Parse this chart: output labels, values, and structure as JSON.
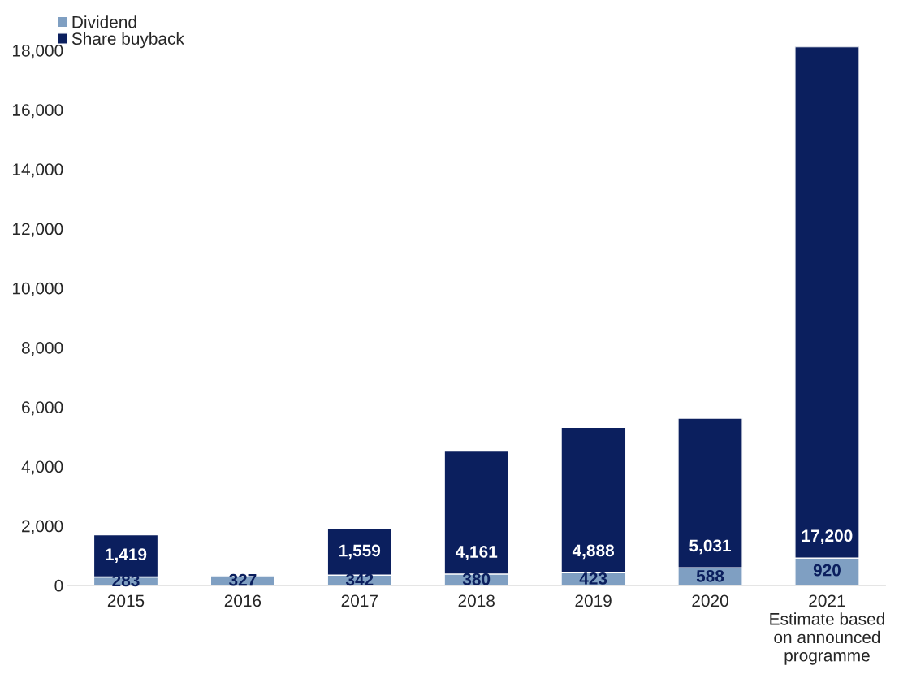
{
  "chart_data": {
    "type": "bar",
    "stacked": true,
    "categories": [
      "2015",
      "2016",
      "2017",
      "2018",
      "2019",
      "2020",
      "2021\nEstimate based\non announced\nprogramme"
    ],
    "series": [
      {
        "name": "Dividend",
        "color": "#7f9fc2",
        "values": [
          283,
          327,
          342,
          380,
          423,
          588,
          920
        ],
        "value_labels": [
          "283",
          "327",
          "342",
          "380",
          "423",
          "588",
          "920"
        ]
      },
      {
        "name": "Share buyback",
        "color": "#0b1f5e",
        "values": [
          1419,
          null,
          1559,
          4161,
          4888,
          5031,
          17200
        ],
        "value_labels": [
          "1,419",
          null,
          "1,559",
          "4,161",
          "4,888",
          "5,031",
          "17,200"
        ]
      }
    ],
    "ylim": [
      0,
      18120
    ],
    "yticks": [
      0,
      {
        "value": 2000,
        "label": "2,000"
      },
      {
        "value": 4000,
        "label": "4,000"
      },
      {
        "value": 6000,
        "label": "6,000"
      },
      {
        "value": 8000,
        "label": "8,000"
      },
      {
        "value": 10000,
        "label": "10,000"
      },
      {
        "value": 12000,
        "label": "12,000"
      },
      {
        "value": 14000,
        "label": "14,000"
      },
      {
        "value": 16000,
        "label": "16,000"
      },
      {
        "value": 18000,
        "label": "18,000"
      }
    ],
    "grid": false,
    "legend": "top left"
  }
}
